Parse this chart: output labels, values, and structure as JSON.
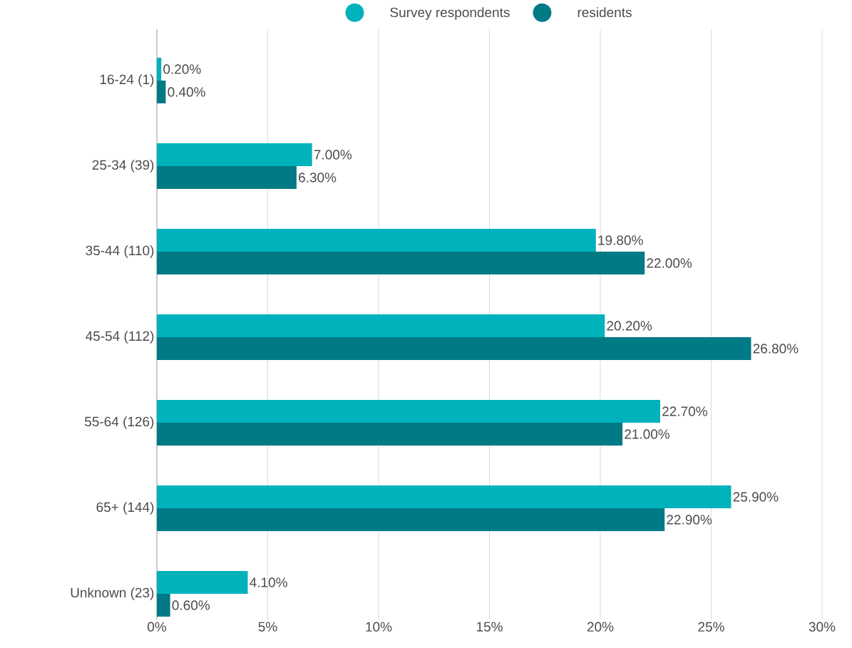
{
  "chart_data": {
    "type": "bar",
    "orientation": "horizontal",
    "categories": [
      "16-24 (1)",
      "25-34 (39)",
      "35-44 (110)",
      "45-54 (112)",
      "55-64 (126)",
      "65+ (144)",
      "Unknown (23)"
    ],
    "series": [
      {
        "name": "Survey respondents",
        "color": "#00b2bc",
        "values": [
          0.2,
          7.0,
          19.8,
          20.2,
          22.7,
          25.9,
          4.1
        ],
        "value_labels": [
          "0.20%",
          "7.00%",
          "19.80%",
          "20.20%",
          "22.70%",
          "25.90%",
          "4.10%"
        ]
      },
      {
        "name": "residents",
        "color": "#007a85",
        "values": [
          0.4,
          6.3,
          22.0,
          26.8,
          21.0,
          22.9,
          0.6
        ],
        "value_labels": [
          "0.40%",
          "6.30%",
          "22.00%",
          "26.80%",
          "21.00%",
          "22.90%",
          "0.60%"
        ]
      }
    ],
    "xlim": [
      0,
      30
    ],
    "xticks": [
      {
        "value": 0,
        "label": "0%"
      },
      {
        "value": 5,
        "label": "5%"
      },
      {
        "value": 10,
        "label": "10%"
      },
      {
        "value": 15,
        "label": "15%"
      },
      {
        "value": 20,
        "label": "20%"
      },
      {
        "value": 25,
        "label": "25%"
      },
      {
        "value": 30,
        "label": "30%"
      }
    ],
    "grid": "x",
    "legend": "top"
  }
}
